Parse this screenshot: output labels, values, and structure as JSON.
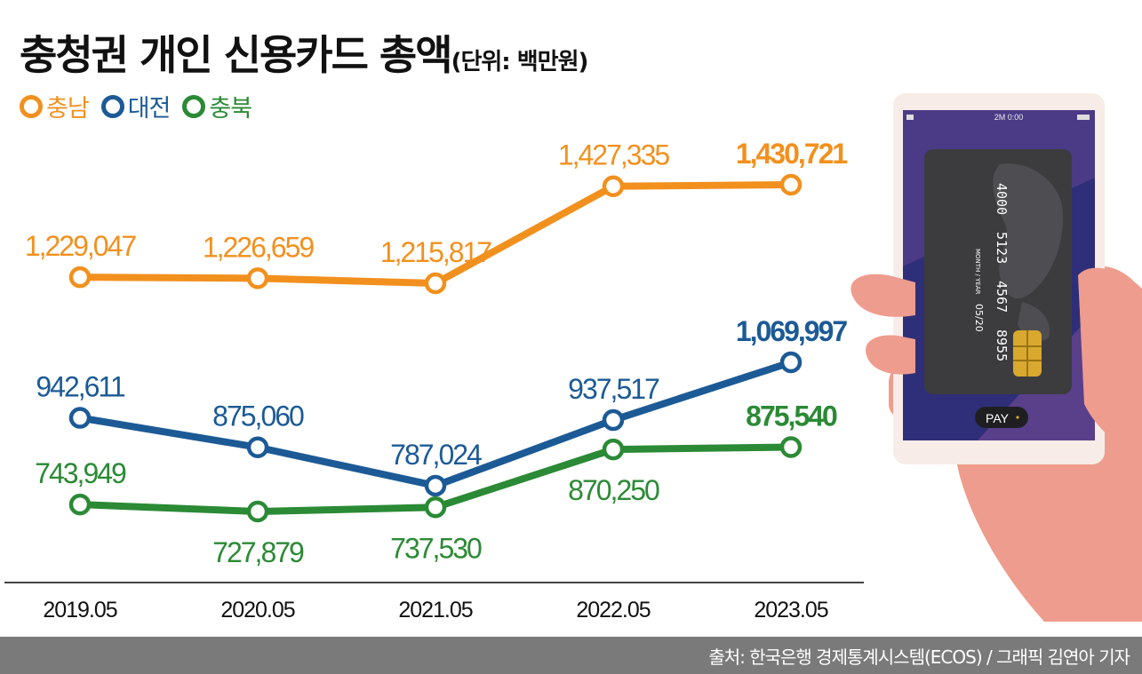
{
  "title": "충청권 개인 신용카드 총액",
  "unit": "(단위: 백만원)",
  "colors": {
    "chungnam": "#f2901e",
    "daejeon": "#1c5a96",
    "chungbuk": "#2b8a35"
  },
  "phone_text": {
    "status_time": "2M 0:00",
    "card_number": [
      "4000",
      "5123",
      "4567",
      "8955"
    ],
    "card_expiry_label": "MONTH / YEAR",
    "card_expiry": "05/20",
    "pay_button": "PAY"
  },
  "chart_data": {
    "type": "line",
    "categories": [
      "2019.05",
      "2020.05",
      "2021.05",
      "2022.05",
      "2023.05"
    ],
    "series": [
      {
        "name": "충남",
        "color": "#f2901e",
        "values": [
          1229047,
          1226659,
          1215817,
          1427335,
          1430721
        ],
        "labels": [
          "1,229,047",
          "1,226,659",
          "1,215,817",
          "1,427,335",
          "1,430,721"
        ]
      },
      {
        "name": "대전",
        "color": "#1c5a96",
        "values": [
          942611,
          875060,
          787024,
          937517,
          1069997
        ],
        "labels": [
          "942,611",
          "875,060",
          "787,024",
          "937,517",
          "1,069,997"
        ]
      },
      {
        "name": "충북",
        "color": "#2b8a35",
        "values": [
          743949,
          727879,
          737530,
          870250,
          875540
        ],
        "labels": [
          "743,949",
          "727,879",
          "737,530",
          "870,250",
          "875,540"
        ]
      }
    ]
  },
  "source": "출처: 한국은행 경제통계시스템(ECOS) / 그래픽 김연아 기자"
}
